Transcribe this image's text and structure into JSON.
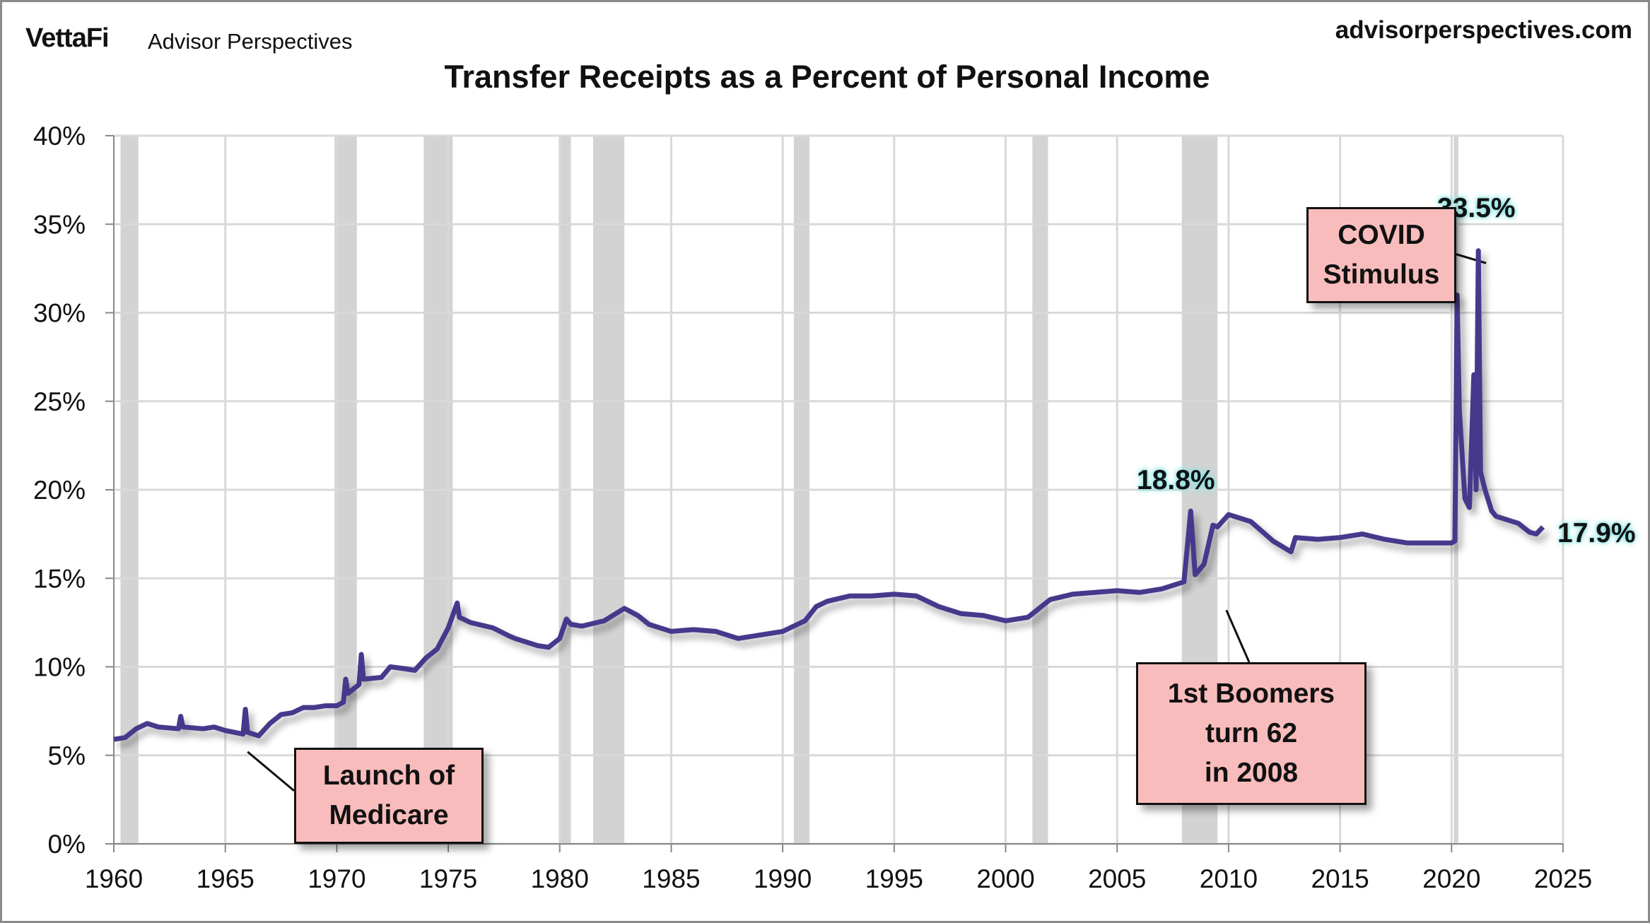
{
  "header": {
    "logo": "VettaFi",
    "brand": "Advisor Perspectives",
    "site": "advisorperspectives.com"
  },
  "chart_data": {
    "type": "line",
    "title": "Transfer Receipts as a Percent of Personal Income",
    "xlabel": "",
    "ylabel": "",
    "xlim": [
      1960,
      2025
    ],
    "ylim": [
      0,
      40
    ],
    "x_ticks": [
      "1960",
      "1965",
      "1970",
      "1975",
      "1980",
      "1985",
      "1990",
      "1995",
      "2000",
      "2005",
      "2010",
      "2015",
      "2020",
      "2025"
    ],
    "y_ticks": [
      "0%",
      "5%",
      "10%",
      "15%",
      "20%",
      "25%",
      "30%",
      "35%",
      "40%"
    ],
    "grid": true,
    "line_color": "#46398c",
    "recession_color": "#d3d3d3",
    "recessions": [
      [
        1960.3,
        1961.1
      ],
      [
        1969.9,
        1970.9
      ],
      [
        1973.9,
        1975.2
      ],
      [
        1980.0,
        1980.5
      ],
      [
        1981.5,
        1982.9
      ],
      [
        1990.5,
        1991.2
      ],
      [
        2001.2,
        2001.9
      ],
      [
        2007.9,
        2009.5
      ],
      [
        2020.1,
        2020.3
      ]
    ],
    "series": [
      {
        "x": [
          1960,
          1960.5,
          1961,
          1961.5,
          1962,
          1962.9,
          1963,
          1963.1,
          1964,
          1964.5,
          1965,
          1965.8,
          1965.9,
          1966.0,
          1966.5,
          1967,
          1967.5,
          1968,
          1968.5,
          1969,
          1969.5,
          1970,
          1970.3,
          1970.4,
          1970.5,
          1971,
          1971.1,
          1971.2,
          1972,
          1972.4,
          1973,
          1973.5,
          1974,
          1974.5,
          1975,
          1975.4,
          1975.5,
          1976,
          1977,
          1977.8,
          1978,
          1979,
          1979.5,
          1980,
          1980.3,
          1980.5,
          1981,
          1982,
          1982.9,
          1983.5,
          1984,
          1985,
          1986,
          1987,
          1988,
          1989,
          1990,
          1991,
          1991.5,
          1992,
          1993,
          1994,
          1995,
          1996,
          1997,
          1998,
          1999,
          2000,
          2001,
          2002,
          2003,
          2004,
          2005,
          2006,
          2007,
          2008,
          2008.3,
          2008.5,
          2008.9,
          2009.3,
          2009.5,
          2010,
          2011,
          2012,
          2012.8,
          2013,
          2014,
          2015,
          2016,
          2017,
          2018,
          2019,
          2020,
          2020.15,
          2020.25,
          2020.35,
          2020.6,
          2020.8,
          2021,
          2021.1,
          2021.2,
          2021.3,
          2021.5,
          2021.8,
          2022,
          2022.5,
          2023,
          2023.5,
          2023.8,
          2024.1
        ],
        "y": [
          5.9,
          6.0,
          6.5,
          6.8,
          6.6,
          6.5,
          7.2,
          6.6,
          6.5,
          6.6,
          6.4,
          6.2,
          7.6,
          6.3,
          6.1,
          6.8,
          7.3,
          7.4,
          7.7,
          7.7,
          7.8,
          7.8,
          8.0,
          9.3,
          8.5,
          9.0,
          10.7,
          9.3,
          9.4,
          10.0,
          9.9,
          9.8,
          10.5,
          11.0,
          12.2,
          13.6,
          12.8,
          12.5,
          12.2,
          11.7,
          11.6,
          11.2,
          11.1,
          11.6,
          12.7,
          12.4,
          12.3,
          12.6,
          13.3,
          12.9,
          12.4,
          12.0,
          12.1,
          12.0,
          11.6,
          11.8,
          12.0,
          12.6,
          13.4,
          13.7,
          14.0,
          14.0,
          14.1,
          14.0,
          13.4,
          13.0,
          12.9,
          12.6,
          12.8,
          13.8,
          14.1,
          14.2,
          14.3,
          14.2,
          14.4,
          14.8,
          18.8,
          15.2,
          15.8,
          18.0,
          17.9,
          18.6,
          18.2,
          17.1,
          16.5,
          17.3,
          17.2,
          17.3,
          17.5,
          17.2,
          17.0,
          17.0,
          17.0,
          17.1,
          31.0,
          24.5,
          19.5,
          19.0,
          26.5,
          20.0,
          33.5,
          21.0,
          20.0,
          18.8,
          18.5,
          18.3,
          18.1,
          17.6,
          17.5,
          17.9
        ]
      }
    ],
    "annotations": {
      "medicare": [
        "Launch of",
        "Medicare"
      ],
      "boomers": [
        "1st Boomers",
        "turn 62",
        "in 2008"
      ],
      "covid": [
        "COVID",
        "Stimulus"
      ],
      "peak_2008": "18.8%",
      "peak_2021": "33.5%",
      "latest": "17.9%"
    }
  }
}
